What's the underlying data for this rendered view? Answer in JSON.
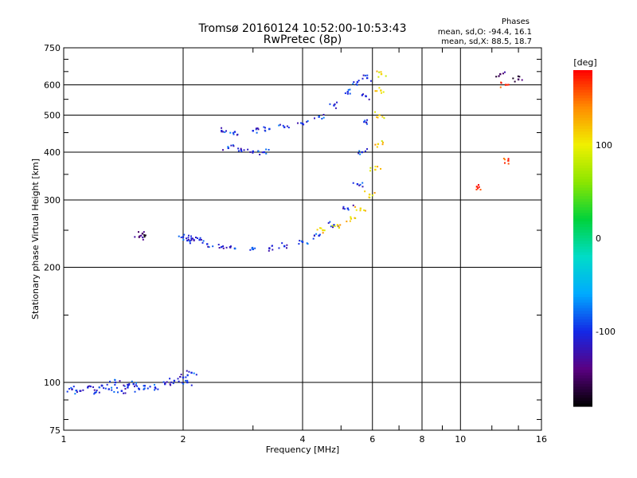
{
  "chart_data": {
    "type": "scatter",
    "title": "Tromsø 20160124 10:52:00-10:53:43",
    "subtitle": "RwPretec (8p)",
    "xlabel": "Frequency [MHz]",
    "ylabel": "Stationary phase Virtual Height [km]",
    "xscale": "log",
    "yscale": "log",
    "xlim": [
      1,
      16
    ],
    "ylim": [
      75,
      750
    ],
    "x_ticks": [
      1,
      2,
      4,
      6,
      8,
      10,
      16
    ],
    "x_tick_labels": [
      "1",
      "2",
      "4",
      "6",
      "8",
      "10",
      "16"
    ],
    "y_ticks": [
      75,
      100,
      200,
      300,
      400,
      500,
      600,
      750
    ],
    "y_tick_labels": [
      "75",
      "100",
      "200",
      "300",
      "400",
      "500",
      "600",
      "750"
    ],
    "grid": true,
    "stats": {
      "title": "Phases",
      "line_o": "mean, sd,O: -94.4, 16.1",
      "line_x": "mean, sd,X:  88.5, 18.7"
    },
    "colorbar": {
      "label": "[deg]",
      "min": -180,
      "max": 180,
      "ticks": [
        100,
        0,
        -100
      ],
      "tick_labels": [
        "100",
        "0",
        "-100"
      ]
    },
    "series": [
      {
        "phase": -100,
        "points": [
          [
            1.05,
            96
          ],
          [
            1.1,
            95
          ],
          [
            1.15,
            97
          ],
          [
            1.2,
            94
          ],
          [
            1.25,
            98
          ],
          [
            1.3,
            96
          ],
          [
            1.35,
            100
          ],
          [
            1.4,
            95
          ],
          [
            1.45,
            97
          ],
          [
            1.5,
            99
          ],
          [
            1.55,
            96
          ],
          [
            1.6,
            98
          ],
          [
            1.7,
            97
          ],
          [
            1.8,
            99
          ],
          [
            1.9,
            101
          ],
          [
            2.0,
            103
          ],
          [
            2.05,
            100
          ],
          [
            2.1,
            106
          ]
        ]
      },
      {
        "phase": -100,
        "points": [
          [
            2.0,
            240
          ],
          [
            2.05,
            235
          ],
          [
            2.1,
            238
          ],
          [
            2.2,
            236
          ],
          [
            2.3,
            230
          ],
          [
            2.5,
            226
          ],
          [
            2.7,
            224
          ],
          [
            3.0,
            223
          ],
          [
            3.3,
            224
          ],
          [
            3.6,
            227
          ],
          [
            4.0,
            233
          ],
          [
            4.4,
            242
          ],
          [
            4.8,
            258
          ],
          [
            5.2,
            285
          ],
          [
            5.5,
            330
          ],
          [
            5.65,
            400
          ],
          [
            5.72,
            480
          ],
          [
            5.78,
            560
          ],
          [
            5.82,
            625
          ]
        ]
      },
      {
        "phase": -100,
        "points": [
          [
            2.5,
            455
          ],
          [
            2.7,
            452
          ],
          [
            3.0,
            455
          ],
          [
            3.3,
            460
          ],
          [
            3.6,
            465
          ],
          [
            4.0,
            475
          ],
          [
            4.4,
            495
          ],
          [
            4.8,
            530
          ],
          [
            5.2,
            575
          ],
          [
            5.5,
            610
          ]
        ]
      },
      {
        "phase": -100,
        "points": [
          [
            2.6,
            410
          ],
          [
            2.8,
            405
          ],
          [
            3.0,
            402
          ],
          [
            3.2,
            400
          ]
        ]
      },
      {
        "phase": 110,
        "points": [
          [
            4.5,
            250
          ],
          [
            4.9,
            258
          ],
          [
            5.3,
            268
          ],
          [
            5.6,
            285
          ],
          [
            5.9,
            310
          ],
          [
            6.1,
            360
          ],
          [
            6.2,
            420
          ],
          [
            6.25,
            500
          ],
          [
            6.3,
            580
          ],
          [
            6.32,
            640
          ]
        ]
      },
      {
        "phase": -150,
        "points": [
          [
            1.55,
            240
          ],
          [
            1.58,
            245
          ],
          [
            12.6,
            640
          ],
          [
            14.0,
            620
          ]
        ]
      },
      {
        "phase": 170,
        "points": [
          [
            13.2,
            380
          ],
          [
            11.0,
            325
          ],
          [
            13.0,
            600
          ]
        ]
      }
    ]
  }
}
